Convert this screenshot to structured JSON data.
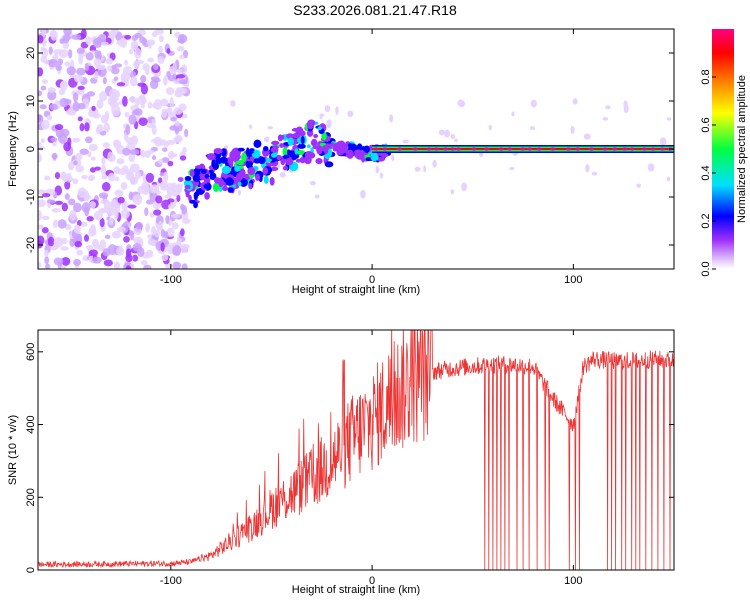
{
  "title": "S233.2026.081.21.47.R18",
  "chart_data": [
    {
      "type": "heatmap",
      "name": "spectrogram",
      "xlabel": "Height of straight line (km)",
      "ylabel": "Frequency (Hz)",
      "xlim": [
        -166,
        150
      ],
      "ylim": [
        -25,
        25
      ],
      "x_ticks": [
        -100,
        0,
        100
      ],
      "x_tick_labels": [
        "-100",
        "0",
        "100"
      ],
      "y_ticks": [
        -20,
        -10,
        0,
        10,
        20
      ],
      "y_tick_labels": [
        "-20",
        "-10",
        "0",
        "10",
        "20"
      ],
      "colorbar": {
        "label": "Normalized spectral amplitude",
        "range": [
          0,
          1
        ],
        "ticks": [
          0.0,
          0.2,
          0.4,
          0.6,
          0.8
        ],
        "tick_labels": [
          "0.0",
          "0.2",
          "0.4",
          "0.6",
          "0.8"
        ],
        "colors": [
          "#ffffff",
          "#e6d2ff",
          "#a030ff",
          "#0000ff",
          "#00e0ff",
          "#00ff40",
          "#ffff00",
          "#ff8000",
          "#ff0000",
          "#ff0080"
        ]
      },
      "ridge": {
        "x": [
          -92,
          -85,
          -80,
          -75,
          -70,
          -65,
          -60,
          -55,
          -50,
          -45,
          -40,
          -35,
          -30,
          -25,
          -20,
          -15,
          -10,
          -5,
          0,
          5,
          10,
          150
        ],
        "freq": [
          -9,
          -7,
          -5,
          -4,
          -5,
          -3,
          -4,
          -2,
          -3,
          -1,
          0,
          0,
          2,
          1,
          0,
          0,
          0,
          -1,
          -1,
          -1,
          0,
          0
        ]
      },
      "series_description": "Scattered noise at x < -92 km; coherent line converging to 0 Hz for x > 0 km"
    },
    {
      "type": "line",
      "name": "snr",
      "xlabel": "Height of straight line (km)",
      "ylabel": "SNR (10 * v/v)",
      "xlim": [
        -166,
        150
      ],
      "ylim": [
        0,
        660
      ],
      "x_ticks": [
        -100,
        0,
        100
      ],
      "x_tick_labels": [
        "-100",
        "0",
        "100"
      ],
      "y_ticks": [
        0,
        200,
        400,
        600
      ],
      "y_tick_labels": [
        "0",
        "200",
        "400",
        "600"
      ],
      "color": "#ee3333",
      "trend": {
        "x": [
          -166,
          -100,
          -90,
          -80,
          -70,
          -60,
          -50,
          -40,
          -30,
          -20,
          -10,
          0,
          10,
          20,
          30,
          40,
          50,
          60,
          70,
          80,
          90,
          100,
          105,
          110,
          120,
          130,
          140,
          150
        ],
        "y": [
          15,
          18,
          22,
          40,
          80,
          120,
          170,
          210,
          250,
          300,
          360,
          410,
          470,
          520,
          545,
          555,
          560,
          565,
          565,
          560,
          470,
          400,
          560,
          580,
          575,
          575,
          580,
          575
        ]
      },
      "dropouts_x": [
        56,
        58,
        60,
        62,
        64,
        66,
        68,
        72,
        75,
        78,
        82,
        86,
        88,
        98,
        101,
        103,
        117,
        119,
        121,
        124,
        126,
        129,
        131,
        133,
        136,
        139,
        142,
        145,
        148
      ]
    }
  ]
}
